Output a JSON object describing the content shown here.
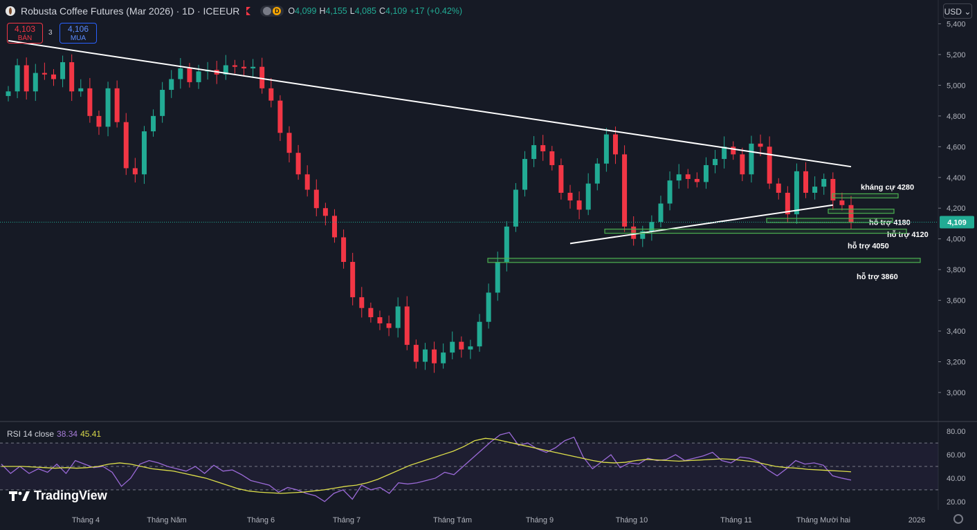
{
  "header": {
    "title": "Robusta Coffee Futures (Mar 2026) · 1D · ICEEUR",
    "open_label": "O",
    "open": "4,099",
    "high_label": "H",
    "high": "4,155",
    "low_label": "L",
    "low": "4,085",
    "close_label": "C",
    "close": "4,109",
    "change": "+17 (+0.42%)"
  },
  "trade": {
    "sell_price": "4,103",
    "sell_label": "BÁN",
    "spread": "3",
    "buy_price": "4,106",
    "buy_label": "MUA"
  },
  "currency": "USD",
  "rsi_legend": {
    "name": "RSI 14 close",
    "value": "38.34",
    "ma_value": "45.41"
  },
  "brand": "TradingView",
  "colors": {
    "up": "#22ab94",
    "down": "#f23645",
    "zone": "#4caf50",
    "rsi": "#9b6ad8",
    "rsi_ma": "#dfe04a",
    "last_price": "#22ab94"
  },
  "chart_data": [
    {
      "type": "candlestick",
      "title": "Robusta Coffee Futures (Mar 2026) · 1D · ICEEUR",
      "x_labels": [
        "Tháng 4",
        "Tháng Năm",
        "Tháng 6",
        "Tháng 7",
        "Tháng Tám",
        "Tháng 9",
        "Tháng 10",
        "Tháng 11",
        "Tháng Mười hai",
        "2026"
      ],
      "y_ticks": [
        3000,
        3200,
        3400,
        3600,
        3800,
        4000,
        4200,
        4400,
        4600,
        4800,
        5000,
        5200,
        5400
      ],
      "ylim": [
        2820,
        5420
      ],
      "last_price": 4109,
      "last_price_label": "4,109",
      "trend_close": [
        4960,
        5130,
        4960,
        5080,
        5070,
        5040,
        5150,
        4960,
        4980,
        4800,
        4730,
        4980,
        4760,
        4460,
        4420,
        4700,
        4800,
        4970,
        5040,
        5110,
        5020,
        5090,
        5100,
        5070,
        5130,
        5120,
        5110,
        5120,
        4980,
        4900,
        4690,
        4560,
        4420,
        4320,
        4200,
        4150,
        4010,
        3850,
        3620,
        3550,
        3490,
        3450,
        3420,
        3560,
        3310,
        3200,
        3280,
        3190,
        3260,
        3330,
        3280,
        3300,
        3460,
        3650,
        3850,
        4080,
        4320,
        4520,
        4610,
        4570,
        4480,
        4300,
        4250,
        4190,
        4360,
        4490,
        4680,
        4550,
        4080,
        4000,
        4050,
        4110,
        4230,
        4380,
        4420,
        4390,
        4370,
        4480,
        4520,
        4600,
        4550,
        4420,
        4620,
        4600,
        4360,
        4300,
        4160,
        4440,
        4300,
        4340,
        4390,
        4250,
        4220,
        4109
      ],
      "support_resistance": [
        {
          "label": "kháng cự 4280",
          "value": 4280
        },
        {
          "label": "hỗ trợ 4180",
          "value": 4180
        },
        {
          "label": "hỗ trợ 4120",
          "value": 4120
        },
        {
          "label": "hỗ trợ 4050",
          "value": 4050
        },
        {
          "label": "hỗ trợ 3860",
          "value": 3860
        }
      ],
      "trendlines": [
        {
          "name": "descending",
          "points": [
            [
              0,
              5290
            ],
            [
              93,
              4470
            ]
          ]
        },
        {
          "name": "ascending",
          "points": [
            [
              62,
              3970
            ],
            [
              91,
              4220
            ]
          ]
        }
      ]
    },
    {
      "type": "line",
      "title": "RSI 14 close",
      "y_ticks": [
        20,
        40,
        60,
        80
      ],
      "ylim": [
        14,
        86
      ],
      "bands": [
        30,
        50,
        70
      ],
      "series": [
        {
          "name": "RSI",
          "last": 38.34,
          "values": [
            52,
            44,
            50,
            44,
            48,
            45,
            52,
            44,
            55,
            52,
            49,
            50,
            45,
            33,
            40,
            52,
            55,
            53,
            50,
            48,
            46,
            50,
            44,
            51,
            46,
            47,
            43,
            38,
            36,
            34,
            28,
            32,
            30,
            27,
            25,
            20,
            27,
            30,
            22,
            34,
            30,
            32,
            27,
            36,
            35,
            36,
            38,
            40,
            45,
            43,
            50,
            57,
            64,
            71,
            77,
            79,
            68,
            70,
            65,
            62,
            66,
            72,
            75,
            58,
            48,
            54,
            60,
            49,
            53,
            52,
            57,
            55,
            56,
            60,
            55,
            57,
            59,
            62,
            55,
            53,
            58,
            57,
            54,
            47,
            42,
            48,
            55,
            52,
            53,
            51,
            42,
            40,
            38.34
          ]
        },
        {
          "name": "RSI-based MA",
          "last": 45.41,
          "values": [
            50,
            50,
            50,
            49.5,
            49,
            48.5,
            49,
            48.5,
            49,
            50,
            52,
            53,
            52,
            50,
            48,
            47,
            46,
            44,
            42,
            40,
            37,
            34,
            31,
            29,
            28,
            27.5,
            27,
            27.5,
            28,
            29,
            30,
            31.5,
            33,
            34,
            36,
            39,
            43,
            47,
            51,
            54,
            57,
            60,
            63,
            67,
            72,
            74,
            73,
            71,
            69,
            67,
            65,
            63,
            61,
            59,
            57,
            55,
            53.5,
            53,
            53.5,
            55,
            56,
            55.5,
            55,
            54.5,
            55,
            55.5,
            56,
            56.5,
            56,
            55,
            54,
            52,
            50,
            49,
            48.5,
            47.5,
            47,
            46.5,
            46,
            45.41
          ]
        }
      ]
    }
  ]
}
